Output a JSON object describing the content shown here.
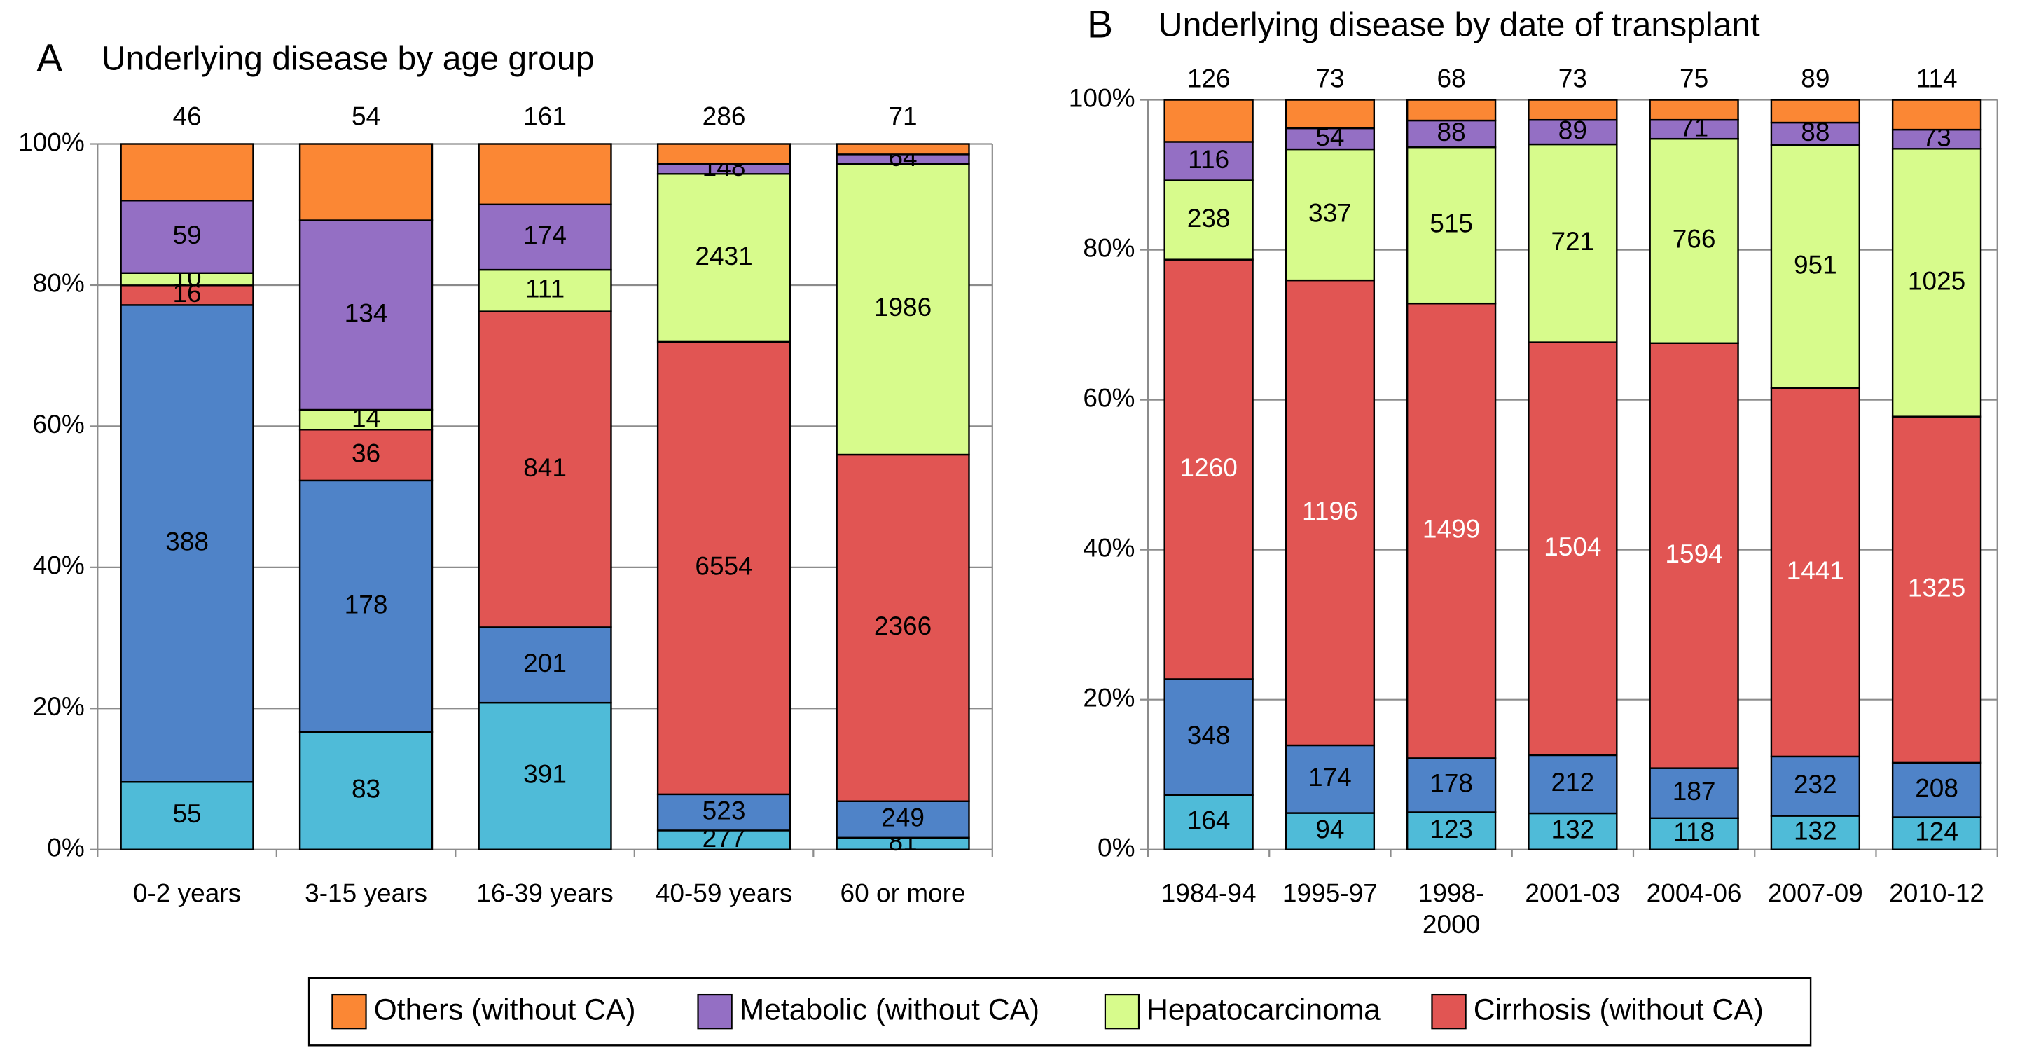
{
  "chart_data": [
    {
      "type": "bar",
      "stacking": "percent",
      "panel_label": "A",
      "title": "Underlying disease by age group",
      "categories": [
        "0-2 years",
        "3-15 years",
        "16-39 years",
        "40-59 years",
        "60 or more"
      ],
      "series": [
        {
          "color": "#4fbbd8",
          "label_color": "#000000",
          "values": [
            55,
            83,
            391,
            277,
            81
          ]
        },
        {
          "color": "#4f83c8",
          "label_color": "#000000",
          "values": [
            388,
            178,
            201,
            523,
            249
          ]
        },
        {
          "name": "Cirrhosis (without CA)",
          "color": "#e15553",
          "label_color": "#000000",
          "values": [
            16,
            36,
            841,
            6554,
            2366
          ]
        },
        {
          "name": "Hepatocarcinoma",
          "color": "#d7fb8c",
          "label_color": "#000000",
          "values": [
            10,
            14,
            111,
            2431,
            1986
          ]
        },
        {
          "name": "Metabolic (without CA)",
          "color": "#946fc4",
          "label_color": "#000000",
          "values": [
            59,
            134,
            174,
            148,
            64
          ]
        },
        {
          "name": "Others (without CA)",
          "color": "#fb8734",
          "label_color": "#000000",
          "label_position": "above",
          "values": [
            46,
            54,
            161,
            286,
            71
          ]
        }
      ],
      "ylim": [
        0,
        100
      ],
      "yticks": [
        {
          "value": 0,
          "label": "0%"
        },
        {
          "value": 20,
          "label": "20%"
        },
        {
          "value": 40,
          "label": "40%"
        },
        {
          "value": 60,
          "label": "60%"
        },
        {
          "value": 80,
          "label": "80%"
        },
        {
          "value": 100,
          "label": "100%"
        }
      ],
      "grid": true
    },
    {
      "type": "bar",
      "stacking": "percent",
      "panel_label": "B",
      "title": "Underlying disease by date of transplant",
      "categories": [
        "1984-94",
        "1995-97",
        "1998-\n2000",
        "2001-03",
        "2004-06",
        "2007-09",
        "2010-12"
      ],
      "series": [
        {
          "color": "#4fbbd8",
          "label_color": "#000000",
          "values": [
            164,
            94,
            123,
            132,
            118,
            132,
            124
          ]
        },
        {
          "color": "#4f83c8",
          "label_color": "#000000",
          "values": [
            348,
            174,
            178,
            212,
            187,
            232,
            208
          ]
        },
        {
          "name": "Cirrhosis (without CA)",
          "color": "#e15553",
          "label_color": "#ffffff",
          "values": [
            1260,
            1196,
            1499,
            1504,
            1594,
            1441,
            1325
          ]
        },
        {
          "name": "Hepatocarcinoma",
          "color": "#d7fb8c",
          "label_color": "#000000",
          "values": [
            238,
            337,
            515,
            721,
            766,
            951,
            1025
          ]
        },
        {
          "name": "Metabolic (without CA)",
          "color": "#946fc4",
          "label_color": "#000000",
          "values": [
            116,
            54,
            88,
            89,
            71,
            88,
            73
          ]
        },
        {
          "name": "Others (without CA)",
          "color": "#fb8734",
          "label_color": "#000000",
          "label_position": "above",
          "values": [
            126,
            73,
            68,
            73,
            75,
            89,
            114
          ]
        }
      ],
      "ylim": [
        0,
        100
      ],
      "yticks": [
        {
          "value": 0,
          "label": "0%"
        },
        {
          "value": 20,
          "label": "20%"
        },
        {
          "value": 40,
          "label": "40%"
        },
        {
          "value": 60,
          "label": "60%"
        },
        {
          "value": 80,
          "label": "80%"
        },
        {
          "value": 100,
          "label": "100%"
        }
      ],
      "grid": true
    }
  ]
}
